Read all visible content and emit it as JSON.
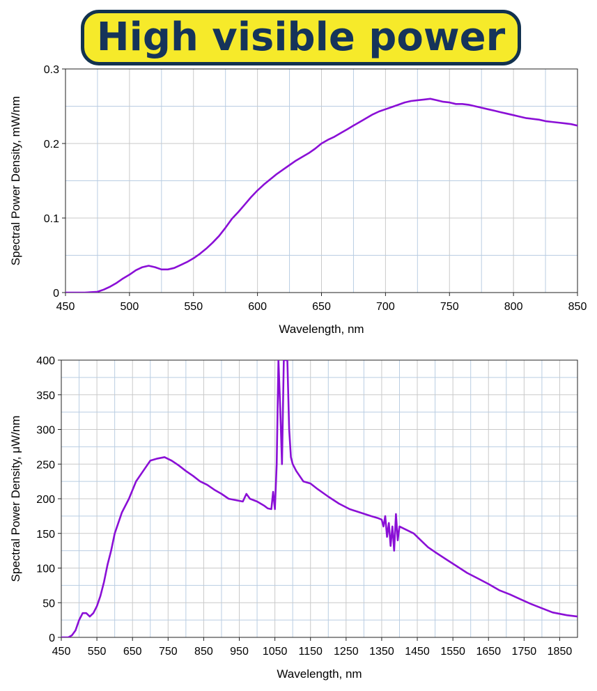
{
  "header": {
    "title": "High visible power"
  },
  "colors": {
    "line": "#8a0fd6",
    "grid_major": "#b9cde2",
    "grid_minor": "#c9c9c9",
    "banner_bg": "#f6ea2a",
    "banner_border": "#12324f"
  },
  "chart_data": [
    {
      "type": "line",
      "title": "",
      "xlabel": "Wavelength,  nm",
      "ylabel": "Spectral Power Density,  mW/nm",
      "xlim": [
        450,
        850
      ],
      "ylim": [
        0,
        0.3
      ],
      "xticks": [
        450,
        500,
        550,
        600,
        650,
        700,
        750,
        800,
        850
      ],
      "yticks": [
        0,
        0.1,
        0.2,
        0.3
      ],
      "ytick_labels": [
        "0",
        "0.1",
        "0.2",
        "0.3"
      ],
      "grid": true,
      "series": [
        {
          "x": [
            450,
            465,
            475,
            480,
            485,
            490,
            495,
            500,
            505,
            510,
            515,
            520,
            525,
            530,
            535,
            540,
            545,
            550,
            555,
            560,
            565,
            570,
            575,
            580,
            585,
            590,
            595,
            600,
            605,
            610,
            615,
            620,
            625,
            630,
            635,
            640,
            645,
            650,
            655,
            660,
            665,
            670,
            675,
            680,
            685,
            690,
            695,
            700,
            705,
            710,
            715,
            720,
            725,
            730,
            735,
            740,
            745,
            750,
            755,
            760,
            765,
            770,
            775,
            780,
            785,
            790,
            795,
            800,
            805,
            810,
            815,
            820,
            825,
            830,
            835,
            840,
            845,
            850
          ],
          "y": [
            0,
            0,
            0.001,
            0.004,
            0.008,
            0.013,
            0.019,
            0.024,
            0.03,
            0.034,
            0.036,
            0.034,
            0.031,
            0.031,
            0.033,
            0.037,
            0.041,
            0.046,
            0.052,
            0.059,
            0.067,
            0.076,
            0.087,
            0.099,
            0.108,
            0.118,
            0.128,
            0.137,
            0.145,
            0.152,
            0.159,
            0.165,
            0.171,
            0.177,
            0.182,
            0.187,
            0.193,
            0.2,
            0.205,
            0.209,
            0.214,
            0.219,
            0.224,
            0.229,
            0.234,
            0.239,
            0.243,
            0.246,
            0.249,
            0.252,
            0.255,
            0.257,
            0.258,
            0.259,
            0.26,
            0.258,
            0.256,
            0.255,
            0.253,
            0.253,
            0.252,
            0.25,
            0.248,
            0.246,
            0.244,
            0.242,
            0.24,
            0.238,
            0.236,
            0.234,
            0.233,
            0.232,
            0.23,
            0.229,
            0.228,
            0.227,
            0.226,
            0.224
          ]
        }
      ]
    },
    {
      "type": "line",
      "title": "",
      "xlabel": "Wavelength, nm",
      "ylabel": "Spectral Power Density, μW/nm",
      "xlim": [
        450,
        1900
      ],
      "ylim": [
        0,
        400
      ],
      "xticks": [
        450,
        550,
        650,
        750,
        850,
        950,
        1050,
        1150,
        1250,
        1350,
        1450,
        1550,
        1650,
        1750,
        1850
      ],
      "yticks": [
        0,
        50,
        100,
        150,
        200,
        250,
        300,
        350,
        400
      ],
      "ytick_labels": [
        "0",
        "50",
        "100",
        "150",
        "200",
        "250",
        "300",
        "350",
        "400"
      ],
      "grid": true,
      "series": [
        {
          "x": [
            450,
            470,
            480,
            490,
            500,
            510,
            520,
            530,
            540,
            550,
            560,
            570,
            580,
            590,
            600,
            620,
            640,
            660,
            680,
            700,
            720,
            740,
            760,
            780,
            800,
            820,
            840,
            860,
            880,
            900,
            920,
            940,
            960,
            970,
            980,
            1000,
            1020,
            1030,
            1040,
            1045,
            1050,
            1055,
            1060,
            1065,
            1070,
            1075,
            1080,
            1085,
            1090,
            1095,
            1100,
            1110,
            1130,
            1150,
            1170,
            1200,
            1230,
            1260,
            1290,
            1320,
            1340,
            1350,
            1355,
            1360,
            1365,
            1370,
            1375,
            1380,
            1385,
            1390,
            1395,
            1400,
            1420,
            1440,
            1460,
            1480,
            1500,
            1530,
            1560,
            1590,
            1620,
            1650,
            1680,
            1710,
            1740,
            1770,
            1800,
            1830,
            1850,
            1870,
            1900
          ],
          "y": [
            0,
            0,
            3,
            10,
            25,
            35,
            35,
            30,
            35,
            45,
            60,
            80,
            105,
            125,
            150,
            180,
            200,
            225,
            240,
            255,
            258,
            260,
            255,
            248,
            240,
            233,
            225,
            220,
            213,
            207,
            200,
            198,
            196,
            207,
            200,
            196,
            190,
            186,
            185,
            210,
            185,
            250,
            400,
            330,
            250,
            400,
            400,
            400,
            300,
            260,
            250,
            240,
            225,
            222,
            214,
            203,
            193,
            185,
            180,
            175,
            172,
            170,
            160,
            175,
            145,
            165,
            132,
            160,
            125,
            178,
            140,
            160,
            155,
            150,
            140,
            130,
            123,
            113,
            103,
            93,
            85,
            77,
            68,
            62,
            55,
            48,
            42,
            36,
            34,
            32,
            30
          ]
        }
      ]
    }
  ]
}
